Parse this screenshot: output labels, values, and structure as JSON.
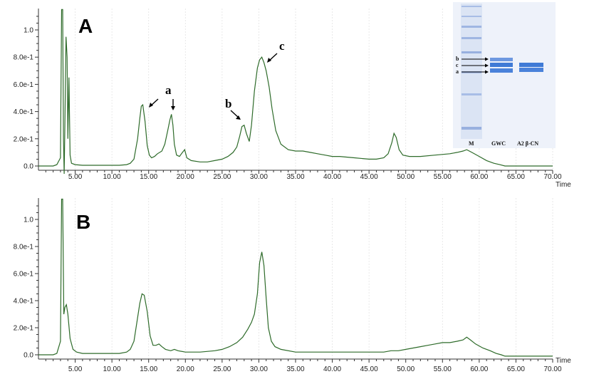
{
  "chart_data": [
    {
      "type": "line",
      "panel_label": "A",
      "xlabel": "Time",
      "ylabel": "",
      "xlim": [
        0,
        70
      ],
      "ylim": [
        -0.05,
        1.15
      ],
      "x_ticks": [
        5,
        10,
        15,
        20,
        25,
        30,
        35,
        40,
        45,
        50,
        55,
        60,
        65,
        70
      ],
      "x_tick_labels": [
        "5.00",
        "10.00",
        "15.00",
        "20.00",
        "25.00",
        "30.00",
        "35.00",
        "40.00",
        "45.00",
        "50.00",
        "55.00",
        "60.00",
        "65.00",
        "70.00"
      ],
      "y_ticks": [
        0,
        0.2,
        0.4,
        0.6,
        0.8,
        1.0
      ],
      "y_tick_labels": [
        "0.0",
        "2.0e-1",
        "4.0e-1",
        "6.0e-1",
        "8.0e-1",
        "1.0"
      ],
      "line_color": "#2e6b2a",
      "series": [
        {
          "x": [
            0,
            1,
            2,
            2.5,
            3.0,
            3.15,
            3.3,
            3.4,
            3.5,
            3.6,
            3.75,
            3.9,
            4.0,
            4.15,
            4.3,
            4.5,
            5,
            6,
            8,
            10,
            11,
            12,
            12.5,
            13.0,
            13.5,
            13.8,
            14.0,
            14.2,
            14.5,
            14.8,
            15.1,
            15.4,
            15.8,
            16.2,
            16.8,
            17.2,
            17.6,
            17.9,
            18.1,
            18.3,
            18.5,
            18.8,
            19.2,
            19.6,
            19.9,
            20.2,
            20.8,
            22,
            23,
            24,
            25,
            25.8,
            26.5,
            27.0,
            27.4,
            27.7,
            28.0,
            28.3,
            28.7,
            29.0,
            29.4,
            29.8,
            30.1,
            30.4,
            30.7,
            31.0,
            31.4,
            31.8,
            32.3,
            33,
            34,
            35,
            36,
            37,
            38,
            39,
            40,
            41,
            43,
            45,
            46,
            47,
            47.6,
            48.1,
            48.4,
            48.7,
            49.1,
            49.6,
            50.5,
            52,
            54,
            56,
            57,
            57.8,
            58.3,
            59,
            60,
            61,
            62,
            62.8,
            63.5,
            64.5,
            66,
            68,
            70
          ],
          "y": [
            0.0,
            0.0,
            0.0,
            0.01,
            0.06,
            1.15,
            1.15,
            0.2,
            -0.08,
            0.3,
            0.95,
            0.8,
            0.2,
            0.65,
            0.08,
            0.02,
            0.01,
            0.005,
            0.005,
            0.005,
            0.005,
            0.01,
            0.02,
            0.05,
            0.2,
            0.35,
            0.44,
            0.45,
            0.33,
            0.15,
            0.08,
            0.06,
            0.07,
            0.09,
            0.11,
            0.16,
            0.26,
            0.34,
            0.38,
            0.3,
            0.16,
            0.08,
            0.07,
            0.1,
            0.12,
            0.06,
            0.04,
            0.03,
            0.03,
            0.04,
            0.05,
            0.07,
            0.1,
            0.14,
            0.22,
            0.29,
            0.3,
            0.24,
            0.18,
            0.3,
            0.55,
            0.72,
            0.78,
            0.8,
            0.76,
            0.7,
            0.58,
            0.42,
            0.26,
            0.16,
            0.12,
            0.11,
            0.11,
            0.1,
            0.09,
            0.08,
            0.07,
            0.07,
            0.06,
            0.05,
            0.05,
            0.06,
            0.09,
            0.17,
            0.24,
            0.21,
            0.12,
            0.08,
            0.07,
            0.07,
            0.08,
            0.09,
            0.1,
            0.11,
            0.12,
            0.1,
            0.07,
            0.04,
            0.02,
            0.01,
            0.0,
            0.0,
            0.0,
            0.0,
            0.0
          ]
        }
      ],
      "annotations": [
        "a",
        "a",
        "b",
        "c"
      ],
      "gel_inset": {
        "lane_labels": [
          "M",
          "GWC",
          "A2 β-CN"
        ],
        "band_labels": [
          "b",
          "c",
          "a"
        ],
        "band_color": "#3f7ad6"
      }
    },
    {
      "type": "line",
      "panel_label": "B",
      "xlabel": "Time",
      "ylabel": "",
      "xlim": [
        0,
        70
      ],
      "ylim": [
        -0.05,
        1.15
      ],
      "x_ticks": [
        5,
        10,
        15,
        20,
        25,
        30,
        35,
        40,
        45,
        50,
        55,
        60,
        65,
        70
      ],
      "x_tick_labels": [
        "5.00",
        "10.00",
        "15.00",
        "20.00",
        "25.00",
        "30.00",
        "35.00",
        "40.00",
        "45.00",
        "50.00",
        "55.00",
        "60.00",
        "65.00",
        "70.00"
      ],
      "y_ticks": [
        0,
        0.2,
        0.4,
        0.6,
        0.8,
        1.0
      ],
      "y_tick_labels": [
        "0.0",
        "2.0e-1",
        "4.0e-1",
        "6.0e-1",
        "8.0e-1",
        "1.0"
      ],
      "line_color": "#2e6b2a",
      "series": [
        {
          "x": [
            0,
            1,
            2,
            2.5,
            3.0,
            3.15,
            3.3,
            3.45,
            3.6,
            3.8,
            4.0,
            4.3,
            4.7,
            5.2,
            6,
            8,
            10,
            11,
            12,
            12.5,
            13.0,
            13.4,
            13.8,
            14.1,
            14.4,
            14.8,
            15.2,
            15.6,
            16.0,
            16.4,
            16.8,
            17.3,
            18.0,
            18.5,
            19.0,
            20,
            22,
            24,
            25,
            26,
            27,
            27.8,
            28.5,
            29.0,
            29.4,
            29.8,
            30.1,
            30.4,
            30.7,
            31.0,
            31.3,
            31.7,
            32.2,
            33,
            35,
            40,
            45,
            47,
            48,
            49,
            50,
            51,
            52,
            53,
            54,
            55,
            56,
            57,
            57.8,
            58.3,
            58.8,
            59.5,
            60.5,
            61.5,
            62.3,
            63.0,
            63.5,
            64.5,
            66,
            68,
            70
          ],
          "y": [
            0.0,
            0.0,
            0.0,
            0.01,
            0.1,
            1.15,
            1.15,
            0.3,
            0.35,
            0.37,
            0.3,
            0.12,
            0.04,
            0.02,
            0.01,
            0.01,
            0.01,
            0.01,
            0.02,
            0.04,
            0.1,
            0.24,
            0.38,
            0.45,
            0.44,
            0.32,
            0.14,
            0.07,
            0.07,
            0.08,
            0.06,
            0.04,
            0.03,
            0.04,
            0.03,
            0.02,
            0.02,
            0.03,
            0.04,
            0.06,
            0.09,
            0.13,
            0.19,
            0.24,
            0.3,
            0.45,
            0.68,
            0.76,
            0.66,
            0.42,
            0.2,
            0.1,
            0.06,
            0.04,
            0.02,
            0.02,
            0.02,
            0.02,
            0.03,
            0.03,
            0.04,
            0.05,
            0.06,
            0.07,
            0.08,
            0.09,
            0.09,
            0.1,
            0.11,
            0.13,
            0.11,
            0.08,
            0.05,
            0.03,
            0.01,
            0.0,
            -0.01,
            -0.01,
            -0.01,
            -0.01,
            -0.01
          ]
        }
      ]
    }
  ]
}
